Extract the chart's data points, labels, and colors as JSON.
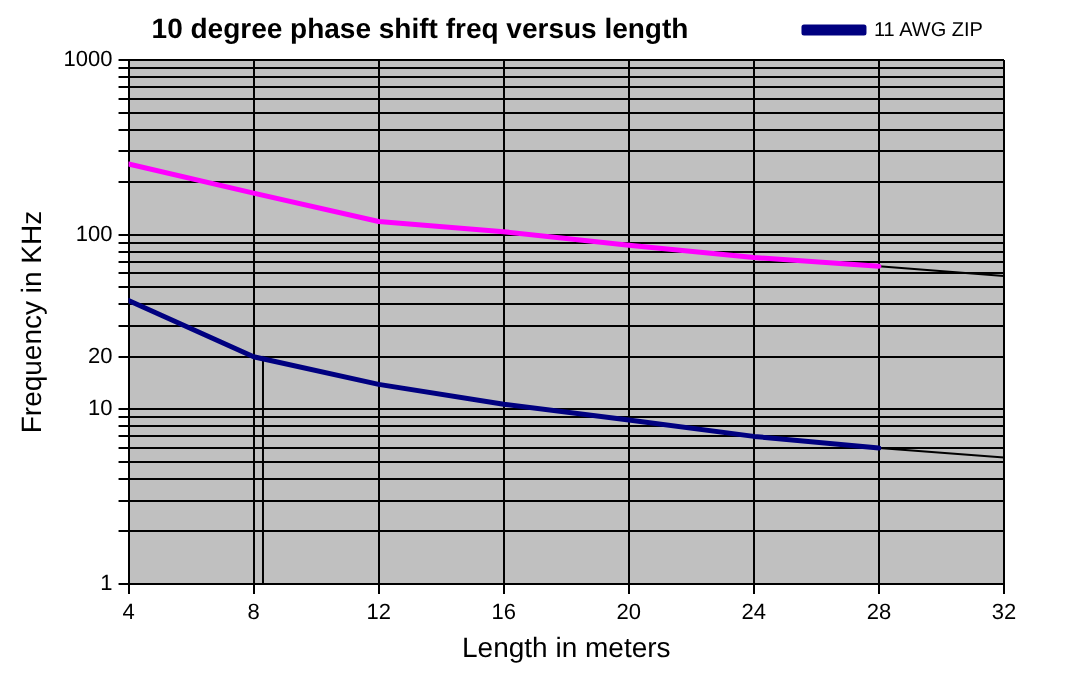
{
  "chart_data": {
    "type": "line",
    "title": "10 degree phase shift freq versus length",
    "xlabel": "Length in meters",
    "ylabel": "Frequency in KHz",
    "x": [
      4,
      8,
      12,
      16,
      20,
      24,
      28
    ],
    "series": [
      {
        "name": "11 AWG ZIP",
        "color": "#000080",
        "values": [
          42,
          20,
          13.9,
          10.7,
          8.7,
          7.0,
          6.0
        ]
      },
      {
        "color": "#ff00ff",
        "values": [
          254,
          173,
          119,
          104,
          87,
          74,
          66
        ]
      },
      {
        "color": "#000000",
        "x": [
          28,
          32
        ],
        "values": [
          66,
          58
        ]
      },
      {
        "color": "#000000",
        "x": [
          28,
          32
        ],
        "values": [
          6.0,
          5.3
        ]
      },
      {
        "color": "#000000",
        "x": [
          8.3,
          8.3
        ],
        "values": [
          20,
          1
        ]
      }
    ],
    "xlim": [
      4,
      32
    ],
    "xticks": [
      4,
      8,
      12,
      16,
      20,
      24,
      28,
      32
    ],
    "ylim": [
      1,
      1000
    ],
    "yticks": [
      1,
      {
        "value": 2,
        "label": null
      },
      {
        "value": 3,
        "label": null
      },
      {
        "value": 4,
        "label": null
      },
      {
        "value": 5,
        "label": null
      },
      {
        "value": 6,
        "label": null
      },
      {
        "value": 7,
        "label": null
      },
      {
        "value": 8,
        "label": null
      },
      {
        "value": 9,
        "label": null
      },
      10,
      20,
      {
        "value": 30,
        "label": null
      },
      {
        "value": 40,
        "label": null
      },
      {
        "value": 50,
        "label": null
      },
      {
        "value": 60,
        "label": null
      },
      {
        "value": 70,
        "label": null
      },
      {
        "value": 80,
        "label": null
      },
      {
        "value": 90,
        "label": null
      },
      100,
      {
        "value": 200,
        "label": null
      },
      {
        "value": 300,
        "label": null
      },
      {
        "value": 400,
        "label": null
      },
      {
        "value": 500,
        "label": null
      },
      {
        "value": 600,
        "label": null
      },
      {
        "value": 700,
        "label": null
      },
      {
        "value": 800,
        "label": null
      },
      {
        "value": 900,
        "label": null
      },
      1000
    ],
    "log": "y",
    "grid": true,
    "legend": "top right",
    "marker": "none",
    "line_style": "solid"
  }
}
